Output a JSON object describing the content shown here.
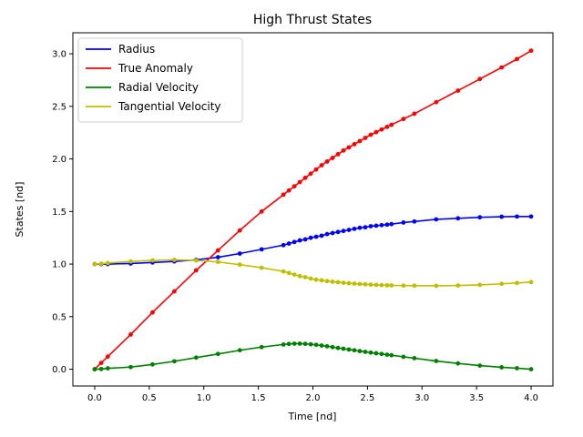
{
  "chart_data": {
    "type": "line",
    "title": "High Thrust States",
    "xlabel": "Time [nd]",
    "ylabel": "States [nd]",
    "xlim": [
      -0.2,
      4.2
    ],
    "ylim": [
      -0.16,
      3.2
    ],
    "xticks": [
      0.0,
      0.5,
      1.0,
      1.5,
      2.0,
      2.5,
      3.0,
      3.5,
      4.0
    ],
    "xtick_labels": [
      "0.0",
      "0.5",
      "1.0",
      "1.5",
      "2.0",
      "2.5",
      "3.0",
      "3.5",
      "4.0"
    ],
    "yticks": [
      0.0,
      0.5,
      1.0,
      1.5,
      2.0,
      2.5,
      3.0
    ],
    "ytick_labels": [
      "0.0",
      "0.5",
      "1.0",
      "1.5",
      "2.0",
      "2.5",
      "3.0"
    ],
    "grid": false,
    "legend_position": "top-left",
    "markers": "dots",
    "x": [
      0.0,
      0.06,
      0.12,
      0.33,
      0.53,
      0.73,
      0.93,
      1.13,
      1.33,
      1.53,
      1.73,
      1.78,
      1.83,
      1.88,
      1.93,
      1.98,
      2.03,
      2.08,
      2.13,
      2.18,
      2.23,
      2.28,
      2.33,
      2.38,
      2.43,
      2.48,
      2.53,
      2.58,
      2.63,
      2.68,
      2.72,
      2.83,
      2.93,
      3.13,
      3.33,
      3.53,
      3.73,
      3.87,
      4.0
    ],
    "series": [
      {
        "name": "Radius",
        "color": "#0000ff",
        "values": [
          1.0,
          1.0,
          1.0,
          1.005,
          1.015,
          1.025,
          1.04,
          1.065,
          1.1,
          1.14,
          1.18,
          1.195,
          1.21,
          1.225,
          1.235,
          1.25,
          1.26,
          1.27,
          1.285,
          1.295,
          1.305,
          1.315,
          1.325,
          1.335,
          1.345,
          1.35,
          1.36,
          1.365,
          1.37,
          1.375,
          1.38,
          1.395,
          1.405,
          1.425,
          1.435,
          1.445,
          1.45,
          1.452,
          1.452
        ]
      },
      {
        "name": "True Anomaly",
        "color": "#ff0000",
        "values": [
          0.0,
          0.06,
          0.12,
          0.33,
          0.54,
          0.74,
          0.94,
          1.13,
          1.32,
          1.5,
          1.66,
          1.7,
          1.74,
          1.78,
          1.82,
          1.86,
          1.9,
          1.94,
          1.975,
          2.01,
          2.045,
          2.08,
          2.11,
          2.14,
          2.17,
          2.2,
          2.23,
          2.255,
          2.28,
          2.305,
          2.325,
          2.38,
          2.43,
          2.54,
          2.65,
          2.76,
          2.87,
          2.95,
          3.03
        ]
      },
      {
        "name": "Radial Velocity",
        "color": "#008000",
        "values": [
          0.0,
          0.002,
          0.008,
          0.02,
          0.045,
          0.075,
          0.11,
          0.145,
          0.18,
          0.21,
          0.235,
          0.24,
          0.243,
          0.243,
          0.241,
          0.237,
          0.232,
          0.225,
          0.218,
          0.21,
          0.202,
          0.195,
          0.187,
          0.18,
          0.172,
          0.165,
          0.158,
          0.151,
          0.145,
          0.138,
          0.133,
          0.118,
          0.105,
          0.078,
          0.055,
          0.034,
          0.018,
          0.009,
          0.0
        ]
      },
      {
        "name": "Tangential Velocity",
        "color": "#bfbf00",
        "values": [
          1.0,
          1.003,
          1.01,
          1.025,
          1.035,
          1.04,
          1.035,
          1.02,
          0.995,
          0.965,
          0.93,
          0.915,
          0.9,
          0.885,
          0.875,
          0.862,
          0.852,
          0.845,
          0.838,
          0.832,
          0.827,
          0.822,
          0.818,
          0.814,
          0.81,
          0.807,
          0.804,
          0.802,
          0.8,
          0.798,
          0.797,
          0.795,
          0.794,
          0.793,
          0.796,
          0.802,
          0.812,
          0.82,
          0.828
        ]
      }
    ]
  }
}
